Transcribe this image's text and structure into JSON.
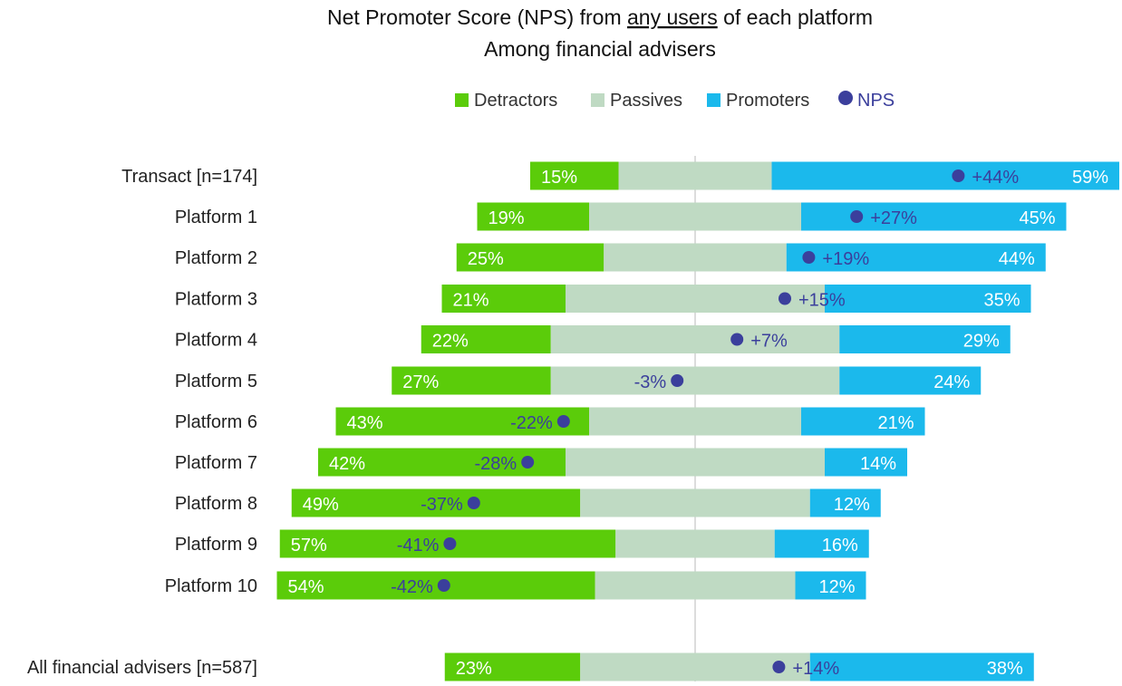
{
  "chart_data": {
    "type": "bar",
    "subtype": "diverging-stacked-bar",
    "title_parts": [
      "Net Promoter Score (NPS) from ",
      "any users",
      " of each platform"
    ],
    "subtitle": "Among financial advisers",
    "legend": [
      "Detractors",
      "Passives",
      "Promoters",
      "NPS"
    ],
    "legend_placement": "top",
    "colors": {
      "detractors": "#5bcc0a",
      "passives": "#bfdac3",
      "promoters": "#1bb9ec",
      "nps": "#3b3f9c",
      "center_line": "#d0d0d0"
    },
    "categories": [
      "Transact [n=174]",
      "Platform 1",
      "Platform 2",
      "Platform 3",
      "Platform 4",
      "Platform 5",
      "Platform 6",
      "Platform 7",
      "Platform 8",
      "Platform 9",
      "Platform 10",
      "All financial advisers [n=587]"
    ],
    "series": [
      {
        "name": "Detractors",
        "values": [
          15,
          19,
          25,
          21,
          22,
          27,
          43,
          42,
          49,
          57,
          54,
          23
        ]
      },
      {
        "name": "Passives",
        "values": [
          26,
          36,
          31,
          44,
          49,
          49,
          36,
          44,
          39,
          27,
          34,
          39
        ]
      },
      {
        "name": "Promoters",
        "values": [
          59,
          45,
          44,
          35,
          29,
          24,
          21,
          14,
          12,
          16,
          12,
          38
        ]
      },
      {
        "name": "NPS",
        "values": [
          44,
          27,
          19,
          15,
          7,
          -3,
          -22,
          -28,
          -37,
          -41,
          -42,
          14
        ]
      }
    ],
    "grid": false
  }
}
